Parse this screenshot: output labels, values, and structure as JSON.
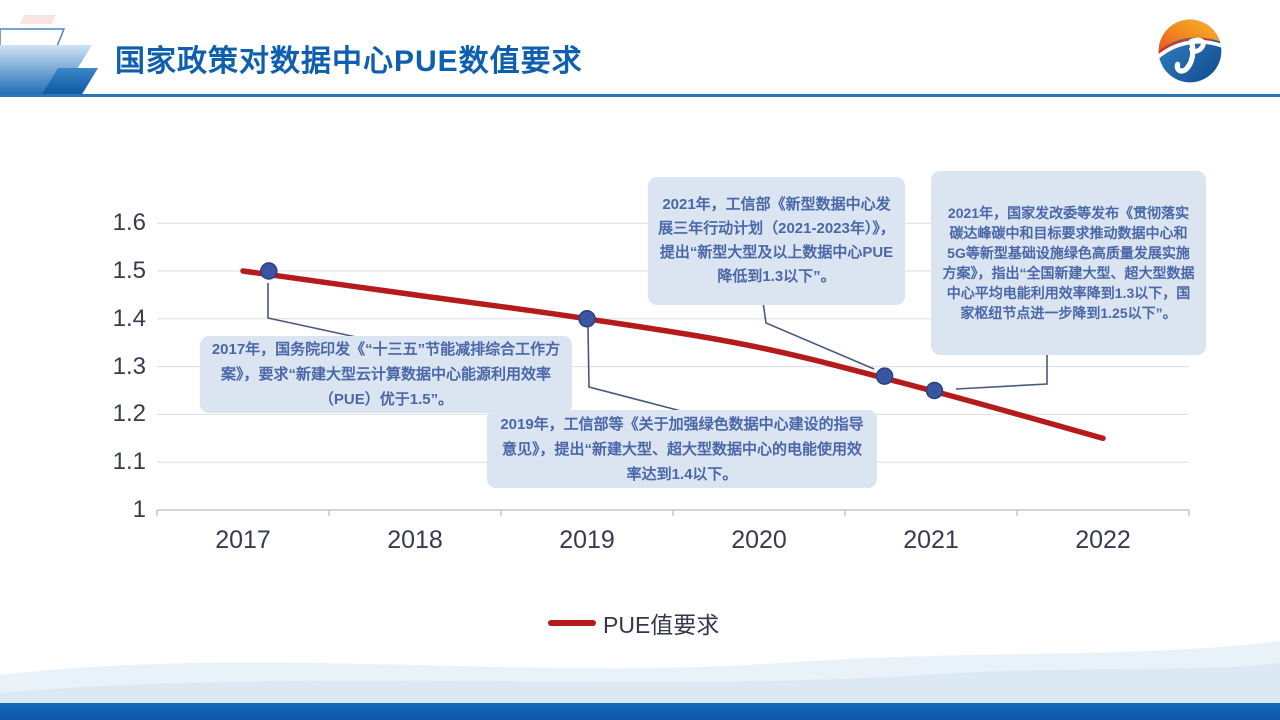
{
  "header": {
    "title": "国家政策对数据中心PUE数值要求"
  },
  "chart_data": {
    "type": "line",
    "x": [
      2017,
      2018,
      2019,
      2020,
      2021,
      2022
    ],
    "series": [
      {
        "name": "PUE值要求",
        "color": "#b51b1b",
        "values": [
          1.5,
          1.45,
          1.4,
          1.34,
          1.25,
          1.15
        ]
      }
    ],
    "markers": [
      {
        "year": 2017.15,
        "value": 1.5
      },
      {
        "year": 2019,
        "value": 1.4
      },
      {
        "year": 2020.73,
        "value": 1.28
      },
      {
        "year": 2021.02,
        "value": 1.25
      }
    ],
    "marker_color": "#3a56a2",
    "ylim": [
      1,
      1.6
    ],
    "yticks": [
      1,
      1.1,
      1.2,
      1.3,
      1.4,
      1.5,
      1.6
    ],
    "xlabel": "",
    "ylabel": "",
    "grid": true,
    "legend_position": "bottom"
  },
  "annotations": [
    {
      "id": "policy-2017",
      "text": "2017年，国务院印发《“十三五”节能减排综合工作方案》，要求“新建大型云计算数据中心能源利用效率（PUE）优于1.5”。"
    },
    {
      "id": "policy-2019",
      "text": "2019年，工信部等《关于加强绿色数据中心建设的指导意见》，提出“新建大型、超大型数据中心的电能使用效率达到1.4以下。"
    },
    {
      "id": "policy-2021-miit",
      "text": "2021年，工信部《新型数据中心发展三年行动计划（2021-2023年）》，提出“新型大型及以上数据中心PUE降低到1.3以下”。"
    },
    {
      "id": "policy-2021-ndrc",
      "text": "2021年，国家发改委等发布《贯彻落实碳达峰碳中和目标要求推动数据中心和5G等新型基础设施绿色高质量发展实施方案》，指出“全国新建大型、超大型数据中心平均电能利用效率降到1.3以下，国家枢纽节点进一步降到1.25以下”。"
    }
  ]
}
